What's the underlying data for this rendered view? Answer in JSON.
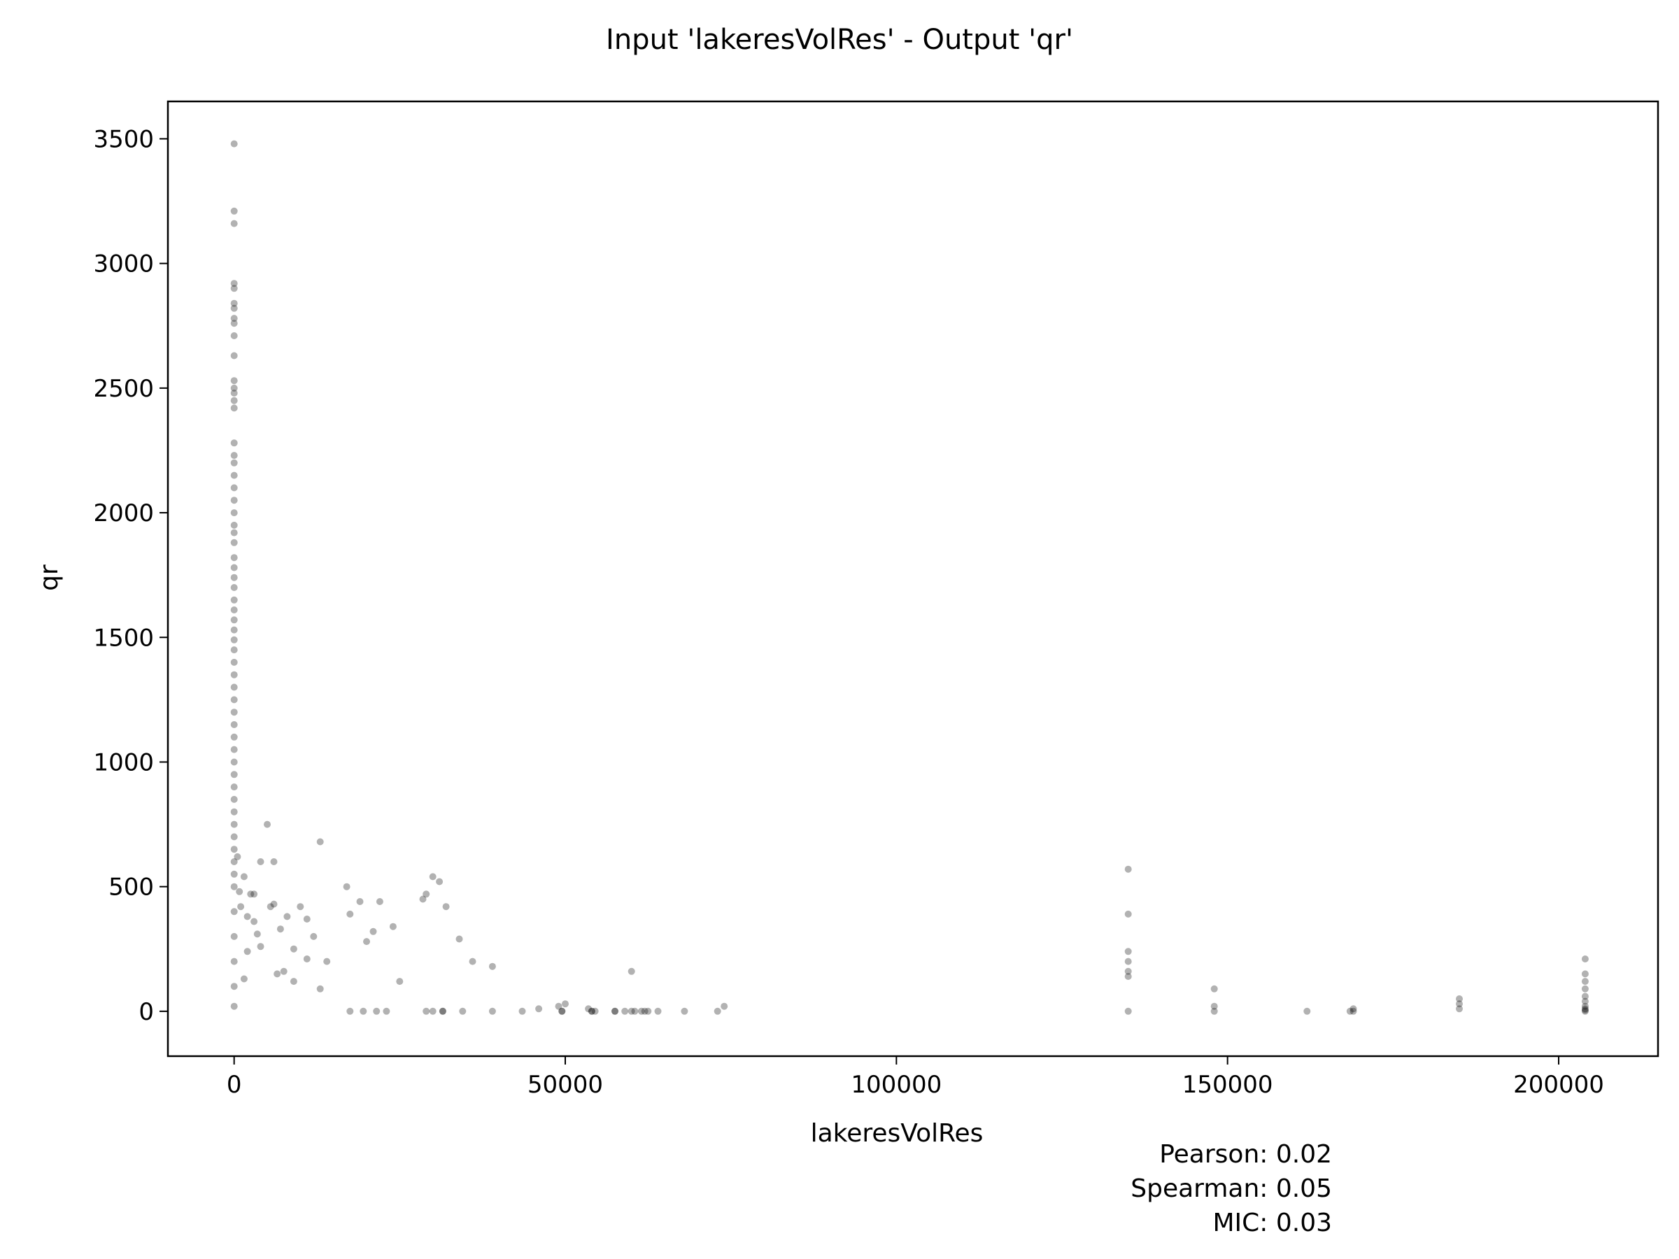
{
  "chart_data": {
    "type": "scatter",
    "title": "Input 'lakeresVolRes' - Output 'qr'",
    "xlabel": "lakeresVolRes",
    "ylabel": "qr",
    "xlim": [
      -10000,
      215000
    ],
    "ylim": [
      -180,
      3650
    ],
    "xticks": [
      0,
      50000,
      100000,
      150000,
      200000
    ],
    "yticks": [
      0,
      500,
      1000,
      1500,
      2000,
      2500,
      3000,
      3500
    ],
    "grid": false,
    "legend": "none",
    "marker_color": "#000000",
    "marker_opacity": 0.3,
    "stats": [
      {
        "label": "Pearson: 0.02"
      },
      {
        "label": "Spearman: 0.05"
      },
      {
        "label": "MIC: 0.03"
      }
    ],
    "points": {
      "x": [
        0,
        0,
        0,
        0,
        0,
        0,
        0,
        0,
        0,
        0,
        0,
        0,
        0,
        0,
        0,
        0,
        0,
        0,
        0,
        0,
        0,
        0,
        0,
        0,
        0,
        0,
        0,
        0,
        0,
        0,
        0,
        0,
        0,
        0,
        0,
        0,
        0,
        0,
        0,
        0,
        0,
        0,
        0,
        0,
        0,
        0,
        0,
        0,
        0,
        0,
        0,
        0,
        0,
        0,
        0,
        0,
        0,
        0,
        0,
        0,
        500,
        800,
        1000,
        1500,
        2000,
        2500,
        3000,
        3500,
        4000,
        5000,
        6000,
        7000,
        8000,
        9000,
        10000,
        11000,
        12000,
        13000,
        14000,
        3000,
        5500,
        6000,
        4000,
        2000,
        1500,
        7500,
        9000,
        11000,
        13000,
        6500,
        17000,
        17500,
        19000,
        20000,
        21000,
        22000,
        24000,
        25000,
        28500,
        29000,
        30000,
        31000,
        32000,
        34000,
        36000,
        39000,
        43500,
        46000,
        49000,
        50000,
        53500,
        54000,
        57500,
        59000,
        60000,
        61500,
        62500,
        68000,
        73000,
        74000,
        17500,
        19500,
        21500,
        23000,
        29000,
        30000,
        31500,
        31500,
        34500,
        39000,
        49500,
        49500,
        54000,
        54500,
        57500,
        60000,
        60500,
        62000,
        64000,
        135000,
        135000,
        135000,
        135000,
        135000,
        135000,
        135000,
        148000,
        148000,
        148000,
        162000,
        168500,
        169000,
        169000,
        185000,
        185000,
        185000,
        204000,
        204000,
        204000,
        204000,
        204000,
        204000,
        204000,
        204000,
        204000,
        204000
      ],
      "y": [
        3480,
        3210,
        3160,
        2920,
        2900,
        2840,
        2820,
        2780,
        2760,
        2710,
        2630,
        2530,
        2500,
        2480,
        2450,
        2420,
        2280,
        2230,
        2200,
        2150,
        2100,
        2050,
        2000,
        1950,
        1920,
        1880,
        1820,
        1780,
        1740,
        1700,
        1650,
        1610,
        1570,
        1530,
        1490,
        1450,
        1400,
        1350,
        1300,
        1250,
        1200,
        1150,
        1100,
        1050,
        1000,
        950,
        900,
        850,
        800,
        750,
        700,
        650,
        600,
        550,
        500,
        400,
        300,
        200,
        100,
        20,
        620,
        480,
        420,
        540,
        380,
        470,
        360,
        310,
        600,
        750,
        600,
        330,
        380,
        250,
        420,
        370,
        300,
        680,
        200,
        470,
        420,
        430,
        260,
        240,
        130,
        160,
        120,
        210,
        90,
        150,
        500,
        390,
        440,
        280,
        320,
        440,
        340,
        120,
        450,
        470,
        540,
        520,
        420,
        290,
        200,
        180,
        0,
        10,
        20,
        30,
        10,
        0,
        0,
        0,
        160,
        0,
        0,
        0,
        0,
        20,
        0,
        0,
        0,
        0,
        0,
        0,
        0,
        0,
        0,
        0,
        0,
        0,
        0,
        0,
        0,
        0,
        0,
        0,
        0,
        570,
        390,
        240,
        200,
        160,
        140,
        0,
        90,
        20,
        0,
        0,
        0,
        10,
        0,
        50,
        30,
        10,
        210,
        150,
        120,
        90,
        60,
        40,
        20,
        10,
        5,
        0
      ]
    }
  }
}
